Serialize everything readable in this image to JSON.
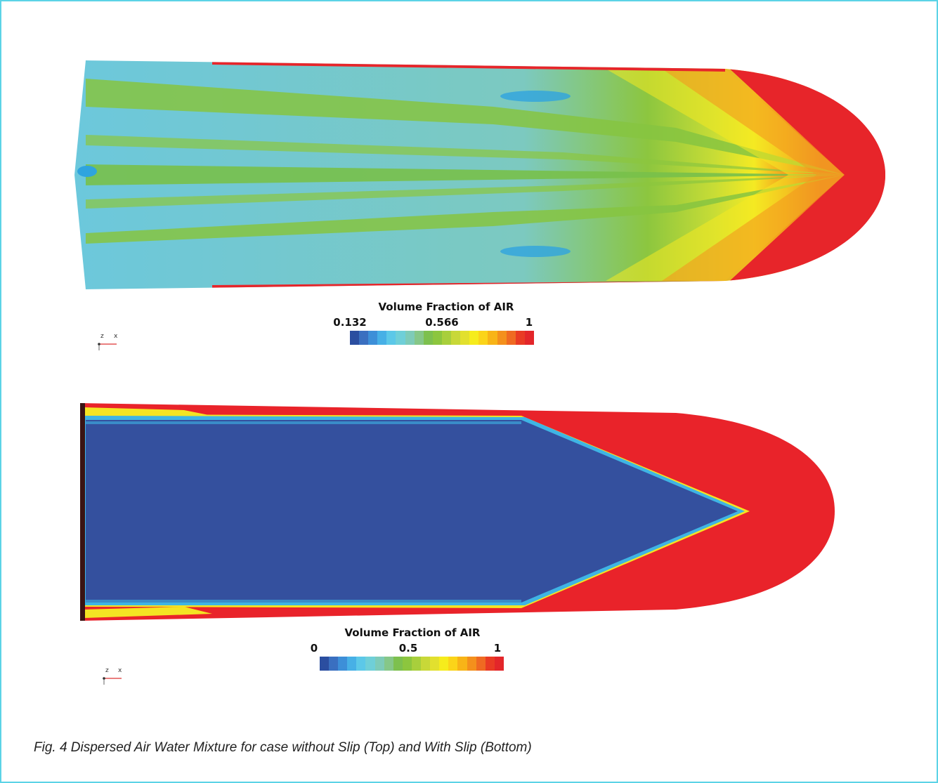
{
  "figure": {
    "top_panel": {
      "legend": {
        "title": "Volume Fraction of AIR",
        "ticks": [
          "0.132",
          "0.566",
          "1"
        ],
        "colors": [
          "#2b4ea0",
          "#3a6fc0",
          "#3d8fd8",
          "#47b0e6",
          "#5cc8e8",
          "#6fcfd8",
          "#7ecbb8",
          "#86c788",
          "#7dc04e",
          "#8cc63e",
          "#a8cf3c",
          "#c8d838",
          "#e2e02e",
          "#f6ec1c",
          "#fbd419",
          "#f8b417",
          "#f4901c",
          "#ef6a22",
          "#e93b24",
          "#e3262a"
        ]
      },
      "axis": {
        "z": "z",
        "x": "x"
      },
      "palette": {
        "red": "#e7252a",
        "orange": "#f39a1e",
        "yellow": "#f4ea23",
        "green": "#86c441",
        "cyan": "#6cc8dc",
        "blue": "#2fa4de"
      }
    },
    "bottom_panel": {
      "legend": {
        "title": "Volume Fraction of AIR",
        "ticks": [
          "0",
          "0.5",
          "1"
        ],
        "colors": [
          "#2b4ea0",
          "#3a6fc0",
          "#3d8fd8",
          "#47b0e6",
          "#5cc8e8",
          "#6fcfd8",
          "#7ecbb8",
          "#86c788",
          "#7dc04e",
          "#8cc63e",
          "#a8cf3c",
          "#c8d838",
          "#e2e02e",
          "#f6ec1c",
          "#fbd419",
          "#f8b417",
          "#f4901c",
          "#ef6a22",
          "#e93b24",
          "#e3262a"
        ]
      },
      "axis": {
        "z": "z",
        "x": "x"
      },
      "palette": {
        "red": "#e9232a",
        "blue": "#34509e",
        "cyan": "#3fb4e4",
        "yellow": "#f4e423"
      }
    },
    "caption": "Fig. 4 Dispersed Air Water Mixture for case without Slip (Top) and With Slip (Bottom)"
  }
}
